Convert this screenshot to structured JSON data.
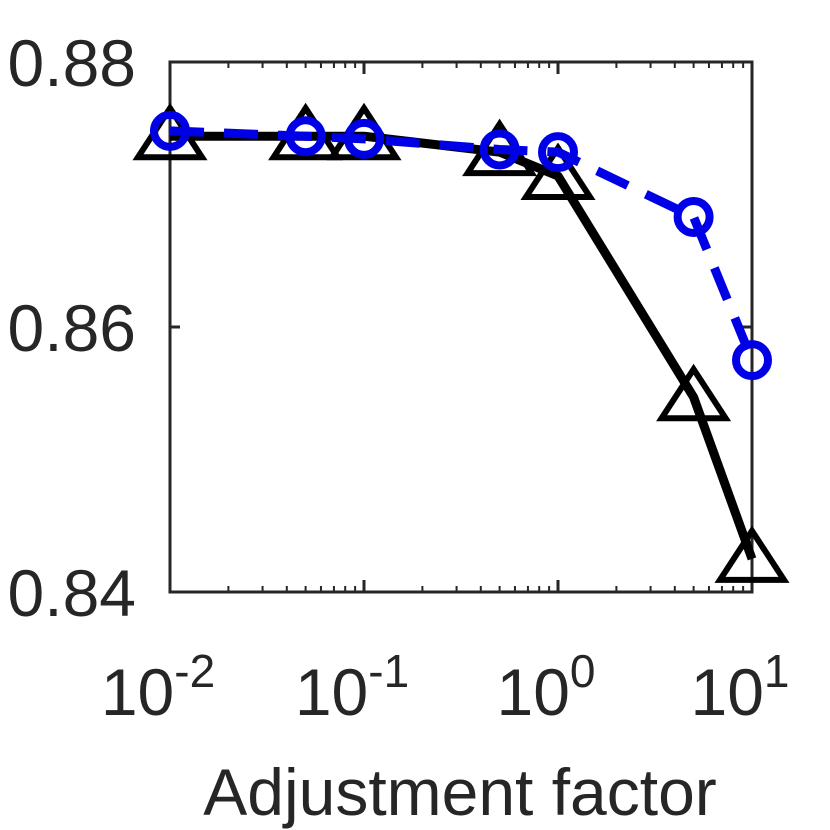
{
  "chart_data": {
    "type": "line",
    "xlabel": "Adjustment factor",
    "ylabel": "",
    "title": "",
    "xscale": "log",
    "xlim": [
      0.01,
      10
    ],
    "ylim": [
      0.84,
      0.88
    ],
    "y_ticks": [
      {
        "value": 0.84,
        "label": "0.84"
      },
      {
        "value": 0.86,
        "label": "0.86"
      },
      {
        "value": 0.88,
        "label": "0.88"
      }
    ],
    "x_ticks": [
      {
        "value": 0.01,
        "base": "10",
        "exp": "-2"
      },
      {
        "value": 0.1,
        "base": "10",
        "exp": "-1"
      },
      {
        "value": 1,
        "base": "10",
        "exp": "0"
      },
      {
        "value": 10,
        "base": "10",
        "exp": "1"
      }
    ],
    "grid": false,
    "legend": "none",
    "series": [
      {
        "color": "#000000",
        "line_style": "solid",
        "marker": "triangle",
        "x": [
          0.01,
          0.05,
          0.1,
          0.5,
          1,
          5,
          10
        ],
        "y": [
          0.8744,
          0.8744,
          0.8744,
          0.8732,
          0.8714,
          0.8547,
          0.8425
        ]
      },
      {
        "color": "#0000e6",
        "line_style": "dashed",
        "marker": "circle",
        "x": [
          0.01,
          0.05,
          0.1,
          0.5,
          1,
          5,
          10
        ],
        "y": [
          0.8748,
          0.8744,
          0.8742,
          0.8734,
          0.8732,
          0.8683,
          0.8575
        ]
      }
    ]
  }
}
